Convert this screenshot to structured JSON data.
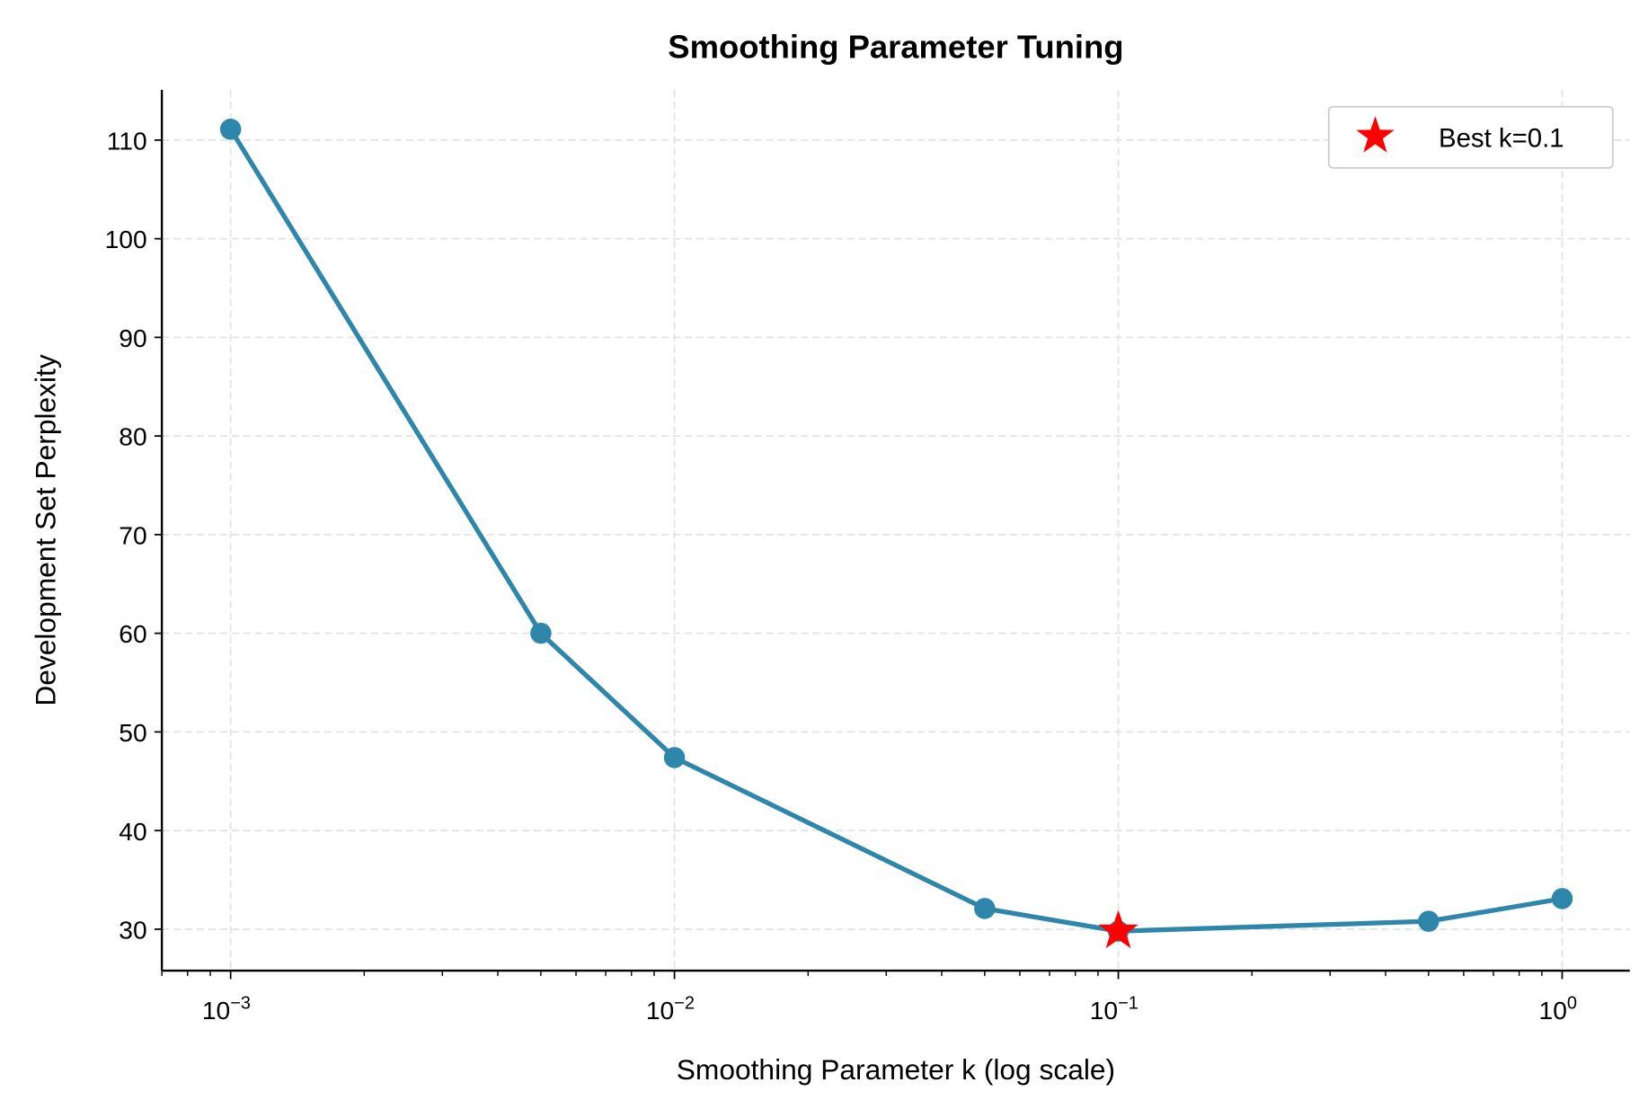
{
  "chart_data": {
    "type": "line",
    "title": "Smoothing Parameter Tuning",
    "xlabel": "Smoothing Parameter k (log scale)",
    "ylabel": "Development Set Perplexity",
    "x_scale": "log",
    "xlim": [
      0.0007,
      1.42
    ],
    "ylim": [
      25.8,
      115.1
    ],
    "x_ticks": [
      {
        "value": 0.001,
        "base": "10",
        "exp": "−3"
      },
      {
        "value": 0.01,
        "base": "10",
        "exp": "−2"
      },
      {
        "value": 0.1,
        "base": "10",
        "exp": "−1"
      },
      {
        "value": 1,
        "base": "10",
        "exp": "0"
      }
    ],
    "y_ticks": [
      30,
      40,
      50,
      60,
      70,
      80,
      90,
      100,
      110
    ],
    "grid": true,
    "series": [
      {
        "x": [
          0.001,
          0.005,
          0.01,
          0.05,
          0.1,
          0.5,
          1.0
        ],
        "y": [
          111.1,
          60.0,
          47.4,
          32.1,
          29.8,
          30.8,
          33.1
        ],
        "color": "#2E86AB",
        "marker": "circle"
      }
    ],
    "highlight": {
      "x": 0.1,
      "y": 29.8,
      "label": "Best k=0.1",
      "color": "#FF0000",
      "marker": "star"
    },
    "legend": {
      "position": "top-right",
      "entries": [
        "Best k=0.1"
      ]
    }
  }
}
